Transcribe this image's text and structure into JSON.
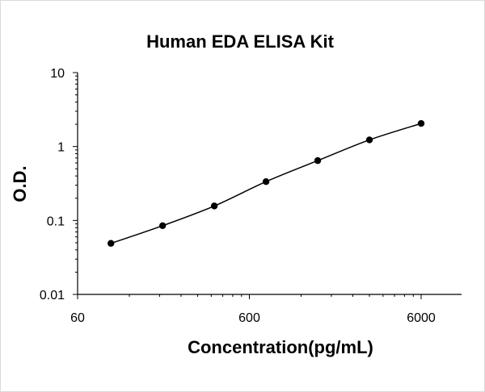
{
  "chart_data": {
    "type": "scatter",
    "title": "Human EDA ELISA Kit",
    "xlabel": "Concentration(pg/mL)",
    "ylabel": "O.D.",
    "x_scale": "log",
    "y_scale": "log",
    "xlim": [
      60,
      6000
    ],
    "ylim": [
      0.01,
      10
    ],
    "x_ticks": [
      "60",
      "600",
      "6000"
    ],
    "y_ticks": [
      "0.01",
      "0.1",
      "1",
      "10"
    ],
    "grid": false,
    "legend": "none",
    "series": [
      {
        "x": [
          93.75,
          187.5,
          375,
          750,
          1500,
          3000,
          6000
        ],
        "y": [
          0.049,
          0.085,
          0.157,
          0.335,
          0.645,
          1.23,
          2.05
        ]
      }
    ],
    "colors": {
      "marker": "#000000",
      "line": "#000000",
      "axis": "#000000"
    }
  }
}
